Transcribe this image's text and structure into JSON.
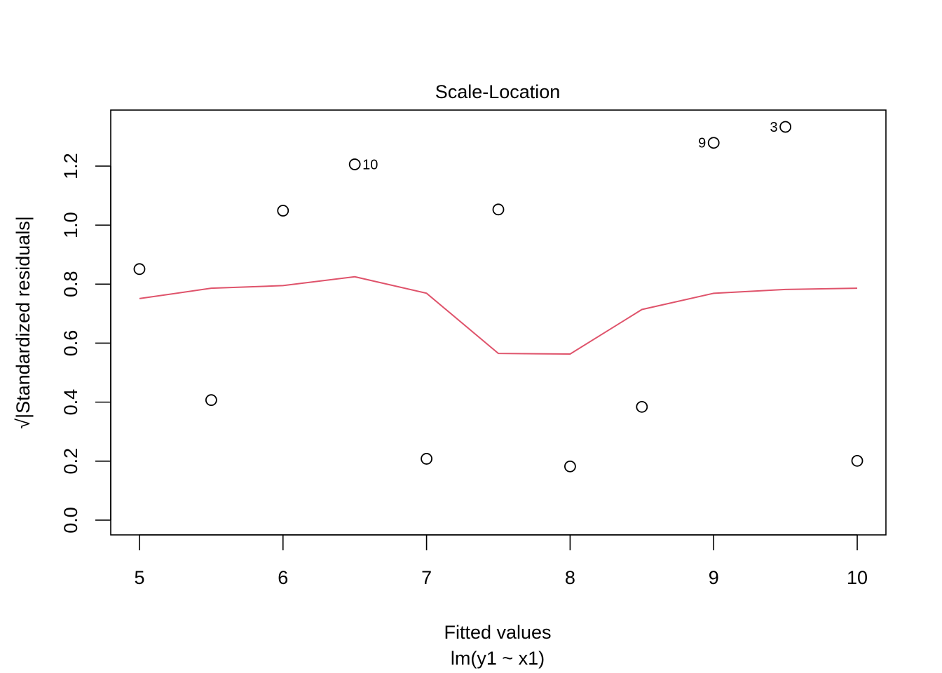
{
  "chart_data": {
    "type": "scatter",
    "title": "Scale-Location",
    "xlabel": "Fitted values",
    "sublabel": "lm(y1 ~ x1)",
    "ylabel": "√|Standardized residuals|",
    "xlim": [
      4.8,
      10.2
    ],
    "ylim": [
      -0.05,
      1.39
    ],
    "x_ticks": [
      5,
      6,
      7,
      8,
      9,
      10
    ],
    "x_tick_labels": [
      "5",
      "6",
      "7",
      "8",
      "9",
      "10"
    ],
    "y_ticks": [
      0.0,
      0.2,
      0.4,
      0.6,
      0.8,
      1.0,
      1.2
    ],
    "y_tick_labels": [
      "0.0",
      "0.2",
      "0.4",
      "0.6",
      "0.8",
      "1.0",
      "1.2"
    ],
    "grid": false,
    "points": [
      {
        "x": 5.0,
        "y": 0.851
      },
      {
        "x": 5.5,
        "y": 0.407
      },
      {
        "x": 6.0,
        "y": 1.049
      },
      {
        "x": 6.5,
        "y": 1.206,
        "label": "10",
        "label_side": "right"
      },
      {
        "x": 7.0,
        "y": 0.208
      },
      {
        "x": 7.5,
        "y": 1.053
      },
      {
        "x": 8.0,
        "y": 0.182
      },
      {
        "x": 8.5,
        "y": 0.384
      },
      {
        "x": 9.0,
        "y": 1.279,
        "label": "9",
        "label_side": "left"
      },
      {
        "x": 9.5,
        "y": 1.333,
        "label": "3",
        "label_side": "left"
      },
      {
        "x": 10.0,
        "y": 0.201
      }
    ],
    "smooth_line": {
      "color": "#DF536B",
      "x": [
        5.0,
        5.5,
        6.0,
        6.5,
        7.0,
        7.5,
        8.0,
        8.5,
        9.0,
        9.5,
        10.0
      ],
      "y": [
        0.751,
        0.786,
        0.795,
        0.825,
        0.769,
        0.565,
        0.563,
        0.714,
        0.769,
        0.782,
        0.786
      ]
    }
  }
}
